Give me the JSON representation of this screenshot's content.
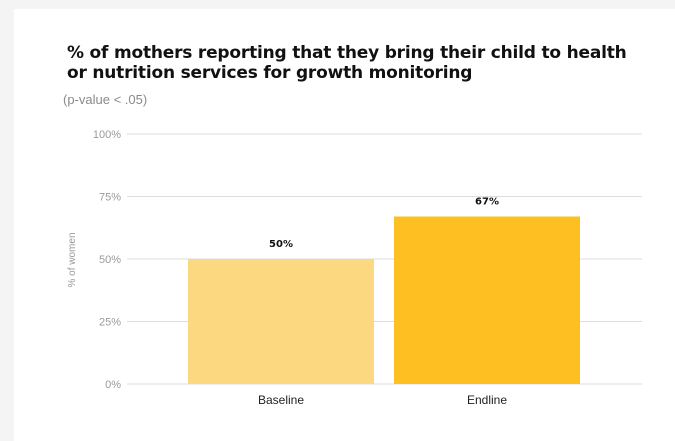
{
  "title": "% of mothers reporting that they bring their child to health or nutrition services for growth monitoring",
  "subtitle": "(p-value < .05)",
  "chart_data": {
    "type": "bar",
    "title": "% of mothers reporting that they bring their child to health or nutrition services for growth monitoring",
    "subtitle": "(p-value < .05)",
    "xlabel": "",
    "ylabel": "% of women",
    "categories": [
      "Baseline",
      "Endline"
    ],
    "values": [
      50,
      67
    ],
    "data_labels": [
      "50%",
      "67%"
    ],
    "ylim": [
      0,
      100
    ],
    "yticks": [
      0,
      25,
      50,
      75,
      100
    ],
    "ytick_labels": [
      "0%",
      "25%",
      "50%",
      "75%",
      "100%"
    ],
    "grid": true,
    "colors": [
      "#fcd881",
      "#fdbf22"
    ],
    "gridline_color": "#dddddd"
  }
}
